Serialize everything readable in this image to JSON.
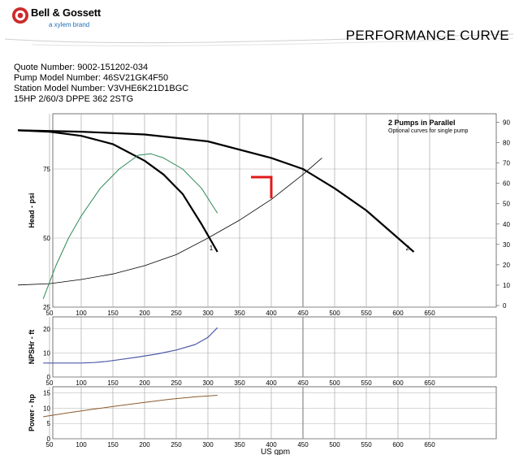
{
  "header": {
    "brand": "Bell & Gossett",
    "brand_sub": "a xylem brand",
    "title": "PERFORMANCE CURVE"
  },
  "info": {
    "quote": "Quote Number: 9002-151202-034",
    "pump_model": "Pump Model Number: 46SV21GK4F50",
    "station_model": "Station Model Number: V3VHE6K21D1BGC",
    "motor": "15HP 2/60/3 DPPE 362 2STG"
  },
  "colors": {
    "logo_red": "#cc2a2a",
    "efficiency_green": "#2e8b57",
    "npshr_blue": "#4f5aa8",
    "power_brown": "#8b5a2b",
    "marker_red": "#e01818",
    "grid": "#9a9a9a"
  },
  "chart_data": [
    {
      "type": "line",
      "ylabel": "Head - psi",
      "xlim": [
        0,
        700
      ],
      "ylim": [
        25,
        95
      ],
      "yticks": [
        25,
        50,
        75
      ],
      "xticks": [
        50,
        100,
        150,
        200,
        250,
        300,
        350,
        400,
        450,
        500,
        550,
        600,
        650
      ],
      "right_axis": {
        "label": "",
        "ticks": [
          0,
          10,
          20,
          30,
          40,
          50,
          60,
          70,
          80,
          90
        ],
        "range": [
          0,
          95
        ]
      },
      "legend": {
        "title": "2 Pumps in Parallel",
        "subtitle": "Optional curves for single pump"
      },
      "series": [
        {
          "label": "1",
          "role": "single pump head",
          "x": [
            0,
            50,
            100,
            150,
            200,
            230,
            260,
            290,
            300,
            315
          ],
          "y": [
            89,
            88.5,
            87,
            84,
            78,
            73,
            66,
            55,
            51,
            45
          ]
        },
        {
          "label": "2",
          "role": "two pumps in parallel head",
          "x": [
            0,
            100,
            200,
            300,
            400,
            450,
            500,
            550,
            600,
            625
          ],
          "y": [
            89,
            88.5,
            87.5,
            85,
            79,
            75,
            68,
            60,
            50,
            45
          ]
        },
        {
          "role": "system curve",
          "x": [
            0,
            50,
            100,
            150,
            200,
            250,
            300,
            350,
            400,
            450,
            480
          ],
          "y": [
            33,
            33.5,
            35,
            37,
            40,
            44,
            50,
            56.5,
            64,
            73,
            79
          ]
        },
        {
          "role": "single pump efficiency",
          "x": [
            40,
            60,
            80,
            100,
            130,
            160,
            190,
            210,
            230,
            260,
            290,
            315
          ],
          "y": [
            28,
            40,
            50,
            58,
            68,
            75,
            80,
            80.5,
            79,
            75,
            68,
            59
          ]
        }
      ],
      "operating_point": {
        "x": 400,
        "y": 75
      }
    },
    {
      "type": "line",
      "ylabel": "NPSHr - ft",
      "xlim": [
        0,
        700
      ],
      "ylim": [
        0,
        25
      ],
      "yticks": [
        0,
        10,
        20
      ],
      "xticks": [
        50,
        100,
        150,
        200,
        250,
        300,
        350,
        400,
        450,
        500,
        550,
        600,
        650
      ],
      "series": [
        {
          "x": [
            40,
            60,
            80,
            100,
            120,
            140,
            160,
            190,
            220,
            250,
            280,
            300,
            315
          ],
          "y": [
            5.8,
            5.8,
            5.8,
            5.8,
            6,
            6.5,
            7.2,
            8.3,
            9.6,
            11.2,
            13.5,
            16.5,
            20.5
          ]
        }
      ]
    },
    {
      "type": "line",
      "ylabel": "Power - hp",
      "xlabel": "US gpm",
      "xlim": [
        0,
        700
      ],
      "ylim": [
        0,
        17
      ],
      "yticks": [
        0,
        5,
        10,
        15
      ],
      "xticks": [
        50,
        100,
        150,
        200,
        250,
        300,
        350,
        400,
        450,
        500,
        550,
        600,
        650
      ],
      "series": [
        {
          "x": [
            40,
            80,
            120,
            160,
            200,
            240,
            280,
            315
          ],
          "y": [
            7.2,
            8.5,
            9.7,
            10.8,
            11.9,
            12.9,
            13.7,
            14.2
          ]
        }
      ]
    }
  ]
}
